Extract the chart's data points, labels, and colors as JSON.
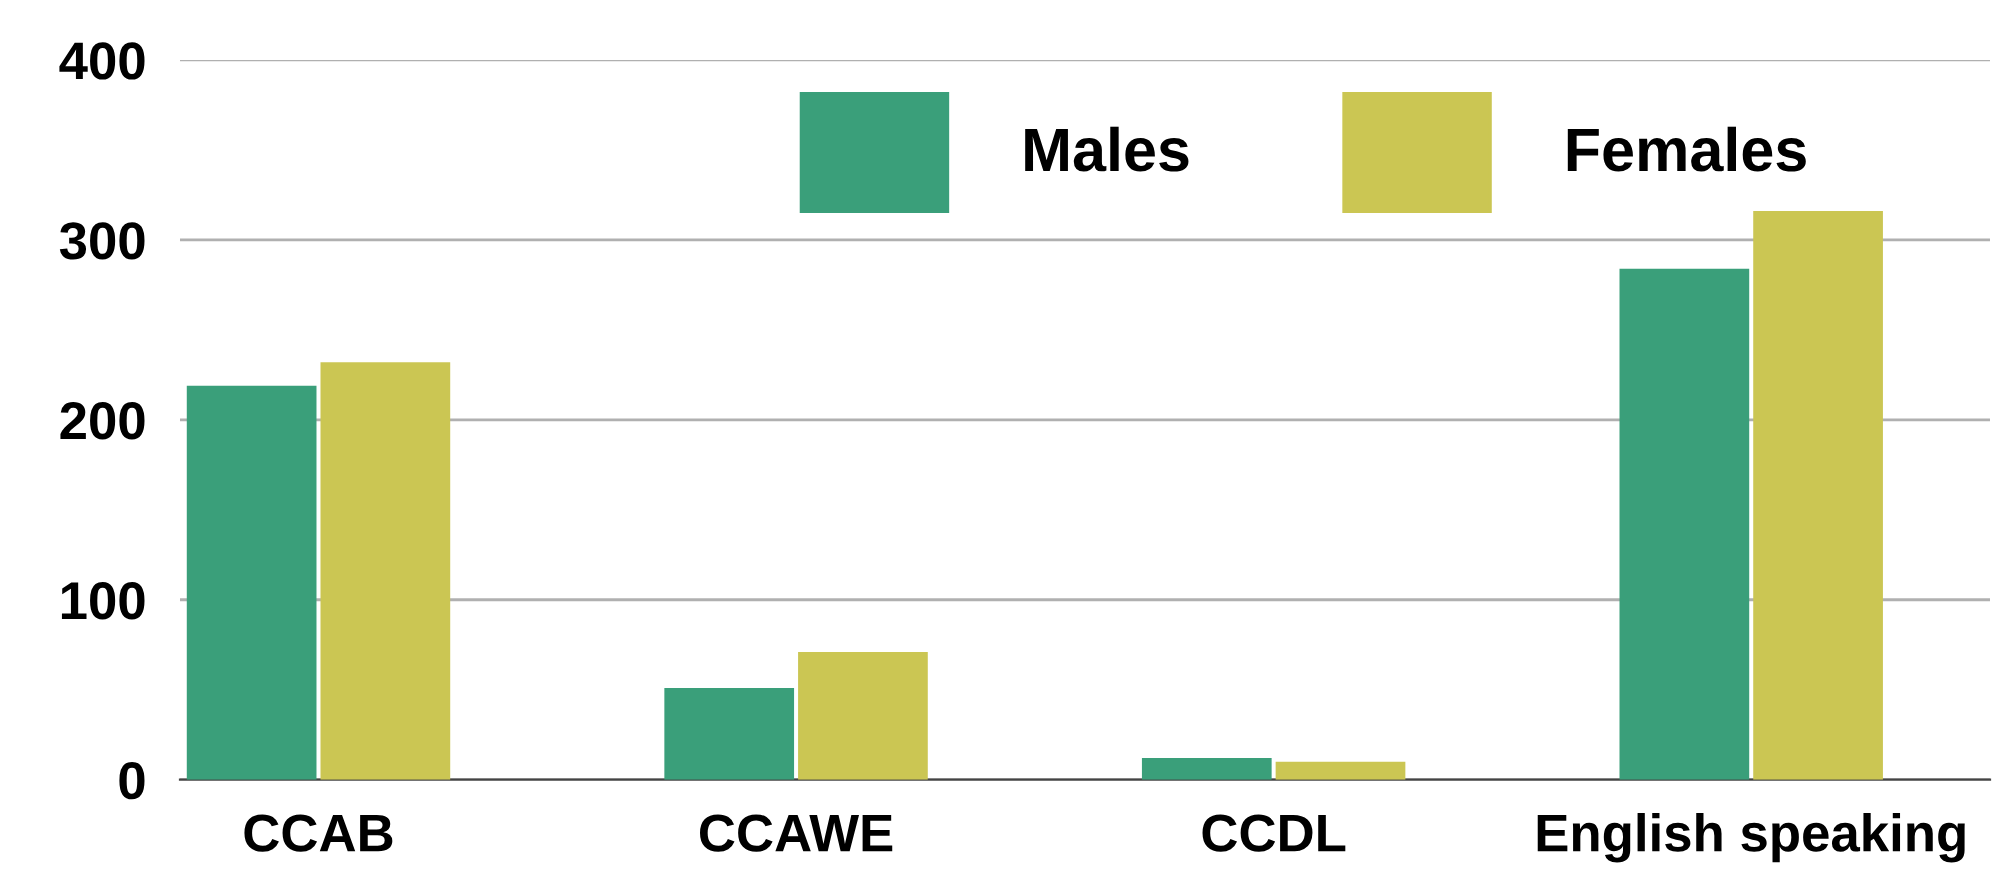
{
  "chart_data": {
    "type": "bar",
    "categories": [
      "CCAB",
      "CCAWE",
      "CCDL",
      "English speaking"
    ],
    "series": [
      {
        "name": "Males",
        "color": "#3a9f7a",
        "values": [
          219,
          51,
          12,
          284
        ]
      },
      {
        "name": "Females",
        "color": "#cbc653",
        "values": [
          232,
          71,
          10,
          316
        ]
      }
    ],
    "ylim": [
      0,
      400
    ],
    "yticks": [
      0,
      100,
      200,
      300,
      400
    ],
    "grid": "y",
    "legend": "top right"
  }
}
